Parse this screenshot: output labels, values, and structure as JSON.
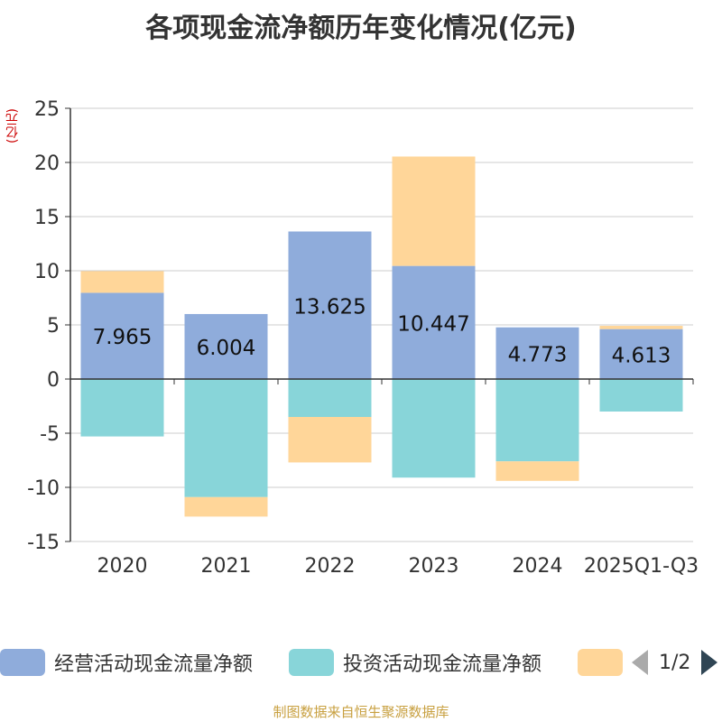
{
  "chart_data": {
    "type": "bar",
    "stacked": true,
    "title": "各项现金流净额历年变化情况(亿元)",
    "ylabel": "(亿元)",
    "ylim": [
      -15,
      25
    ],
    "yticks": [
      -15,
      -10,
      -5,
      0,
      5,
      10,
      15,
      20,
      25
    ],
    "categories": [
      "2020",
      "2021",
      "2022",
      "2023",
      "2024",
      "2025Q1-Q3"
    ],
    "series": [
      {
        "name": "经营活动现金流量净额",
        "color": "#8facdb",
        "values": [
          7.965,
          6.004,
          13.625,
          10.447,
          4.773,
          4.613
        ],
        "labels": [
          "7.965",
          "6.004",
          "13.625",
          "10.447",
          "4.773",
          "4.613"
        ]
      },
      {
        "name": "投资活动现金流量净额",
        "color": "#88d5d9",
        "values": [
          -5.3,
          -10.9,
          -3.5,
          -9.1,
          -7.6,
          -3.0
        ]
      },
      {
        "name": "",
        "color": "#ffd699",
        "values": [
          2.0,
          -1.8,
          -4.2,
          10.1,
          -1.8,
          0.3
        ]
      }
    ],
    "legend_position": "bottom"
  },
  "legend": {
    "items": [
      {
        "label": "经营活动现金流量净额",
        "color": "#8facdb"
      },
      {
        "label": "投资活动现金流量净额",
        "color": "#88d5d9"
      },
      {
        "label": "",
        "color": "#ffd699"
      }
    ],
    "page_text": "1/2"
  },
  "source": "制图数据来自恒生聚源数据库"
}
